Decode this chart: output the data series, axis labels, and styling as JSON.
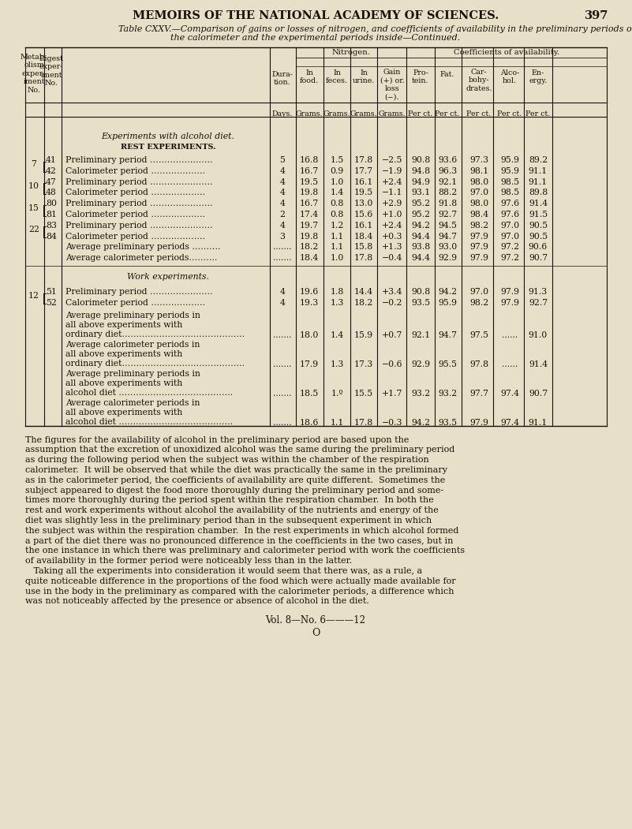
{
  "page_header": "MEMOIRS OF THE NATIONAL ACADEMY OF SCIENCES.",
  "page_number": "397",
  "table_title_line1": "Table CXXV.—Comparison of gains or losses of nitrogen, and coefficients of availability in the preliminary periods outside",
  "table_title_line2": "the calorimeter and the experimental periods inside—Continued.",
  "bg_color": "#e8dfc8",
  "text_color": "#1a1208",
  "rows": [
    {
      "metab": "7",
      "digest": "41",
      "label": "Preliminary period ………………….",
      "dur": "5",
      "food": "16.8",
      "feces": "1.5",
      "urine": "17.8",
      "gain": "−2.5",
      "prot": "90.8",
      "fat": "93.6",
      "carb": "97.3",
      "alc": "95.9",
      "ene": "89.2"
    },
    {
      "metab": "",
      "digest": "42",
      "label": "Calorimeter period ……………….",
      "dur": "4",
      "food": "16.7",
      "feces": "0.9",
      "urine": "17.7",
      "gain": "−1.9",
      "prot": "94.8",
      "fat": "96.3",
      "carb": "98.1",
      "alc": "95.9",
      "ene": "91.1"
    },
    {
      "metab": "10",
      "digest": "47",
      "label": "Preliminary period ………………….",
      "dur": "4",
      "food": "19.5",
      "feces": "1.0",
      "urine": "16.1",
      "gain": "+2.4",
      "prot": "94.9",
      "fat": "92.1",
      "carb": "98.0",
      "alc": "98.5",
      "ene": "91.1"
    },
    {
      "metab": "",
      "digest": "48",
      "label": "Calorimeter period ……………….",
      "dur": "4",
      "food": "19.8",
      "feces": "1.4",
      "urine": "19.5",
      "gain": "−1.1",
      "prot": "93.1",
      "fat": "88.2",
      "carb": "97.0",
      "alc": "98.5",
      "ene": "89.8"
    },
    {
      "metab": "15",
      "digest": "80",
      "label": "Preliminary period ………………….",
      "dur": "4",
      "food": "16.7",
      "feces": "0.8",
      "urine": "13.0",
      "gain": "+2.9",
      "prot": "95.2",
      "fat": "91.8",
      "carb": "98.0",
      "alc": "97.6",
      "ene": "91.4"
    },
    {
      "metab": "",
      "digest": "81",
      "label": "Calorimeter period ……………….",
      "dur": "2",
      "food": "17.4",
      "feces": "0.8",
      "urine": "15.6",
      "gain": "+1.0",
      "prot": "95.2",
      "fat": "92.7",
      "carb": "98.4",
      "alc": "97.6",
      "ene": "91.5"
    },
    {
      "metab": "22",
      "digest": "83",
      "label": "Preliminary period ………………….",
      "dur": "4",
      "food": "19.7",
      "feces": "1.2",
      "urine": "16.1",
      "gain": "+2.4",
      "prot": "94.2",
      "fat": "94.5",
      "carb": "98.2",
      "alc": "97.0",
      "ene": "90.5"
    },
    {
      "metab": "",
      "digest": "84",
      "label": "Calorimeter period ……………….",
      "dur": "3",
      "food": "19.8",
      "feces": "1.1",
      "urine": "18.4",
      "gain": "+0.3",
      "prot": "94.4",
      "fat": "94.7",
      "carb": "97.9",
      "alc": "97.0",
      "ene": "90.5"
    },
    {
      "metab": "",
      "digest": "",
      "label": "Average preliminary periods ……….",
      "dur": ".......",
      "food": "18.2",
      "feces": "1.1",
      "urine": "15.8",
      "gain": "+1.3",
      "prot": "93.8",
      "fat": "93.0",
      "carb": "97.9",
      "alc": "97.2",
      "ene": "90.6"
    },
    {
      "metab": "",
      "digest": "",
      "label": "Average calorimeter periods……….",
      "dur": ".......",
      "food": "18.4",
      "feces": "1.0",
      "urine": "17.8",
      "gain": "−0.4",
      "prot": "94.4",
      "fat": "92.9",
      "carb": "97.9",
      "alc": "97.2",
      "ene": "90.7"
    }
  ],
  "work_rows": [
    {
      "metab": "12",
      "digest": "51",
      "label": "Preliminary period ………………….",
      "dur": "4",
      "food": "19.6",
      "feces": "1.8",
      "urine": "14.4",
      "gain": "+3.4",
      "prot": "90.8",
      "fat": "94.2",
      "carb": "97.0",
      "alc": "97.9",
      "ene": "91.3"
    },
    {
      "metab": "",
      "digest": "52",
      "label": "Calorimeter period ……………….",
      "dur": "4",
      "food": "19.3",
      "feces": "1.3",
      "urine": "18.2",
      "gain": "−0.2",
      "prot": "93.5",
      "fat": "95.9",
      "carb": "98.2",
      "alc": "97.9",
      "ene": "92.7"
    }
  ],
  "avg_rows": [
    {
      "label_lines": [
        "Average preliminary periods in",
        "all above experiments with",
        "ordinary diet……………………………………."
      ],
      "dur": ".......",
      "food": "18.0",
      "feces": "1.4",
      "urine": "15.9",
      "gain": "+0.7",
      "prot": "92.1",
      "fat": "94.7",
      "carb": "97.5",
      "alc": "......",
      "ene": "91.0"
    },
    {
      "label_lines": [
        "Average calorimeter periods in",
        "all above experiments with",
        "ordinary diet……………………………………."
      ],
      "dur": ".......",
      "food": "17.9",
      "feces": "1.3",
      "urine": "17.3",
      "gain": "−0.6",
      "prot": "92.9",
      "fat": "95.5",
      "carb": "97.8",
      "alc": "......",
      "ene": "91.4"
    },
    {
      "label_lines": [
        "Average preliminary periods in",
        "all above experiments with",
        "alcohol diet …………………………………."
      ],
      "dur": ".......",
      "food": "18.5",
      "feces": "1.º",
      "urine": "15.5",
      "gain": "+1.7",
      "prot": "93.2",
      "fat": "93.2",
      "carb": "97.7",
      "alc": "97.4",
      "ene": "90.7"
    },
    {
      "label_lines": [
        "Average calorimeter periods in",
        "all above experiments with",
        "alcohol diet …………………………………."
      ],
      "dur": ".......",
      "food": "18.6",
      "feces": "1.1",
      "urine": "17.8",
      "gain": "−0.3",
      "prot": "94.2",
      "fat": "93.5",
      "carb": "97.9",
      "alc": "97.4",
      "ene": "91.1"
    }
  ],
  "footer_text": [
    "The figures for the availability of alcohol in the preliminary period are based upon the",
    "assumption that the excretion of unoxidized alcohol was the same during the preliminary period",
    "as during the following period when the subject was within the chamber of the respiration",
    "calorimeter.  It will be observed that while the diet was practically the same in the preliminary",
    "as in the calorimeter period, the coefficients of availability are quite different.  Sometimes the",
    "subject appeared to digest the food more thoroughly during the preliminary period and some-",
    "times more thoroughly during the period spent within the respiration chamber.  In both the",
    "rest and work experiments without alcohol the availability of the nutrients and energy of the",
    "diet was slightly less in the preliminary period than in the subsequent experiment in which",
    "the subject was within the respiration chamber.  In the rest experiments in which alcohol formed",
    "a part of the diet there was no pronounced difference in the coefficients in the two cases, but in",
    "the one instance in which there was preliminary and calorimeter period with work the coefficients",
    "of availability in the former period were noticeably less than in the latter.",
    "   Taking all the experiments into consideration it would seem that there was, as a rule, a",
    "quite noticeable difference in the proportions of the food which were actually made available for",
    "use in the body in the preliminary as compared with the calorimeter periods, a difference which",
    "was not noticeably affected by the presence or absence of alcohol in the diet."
  ],
  "vol_line": "Vol. 8—No. 6———12",
  "bottom_o": "O"
}
